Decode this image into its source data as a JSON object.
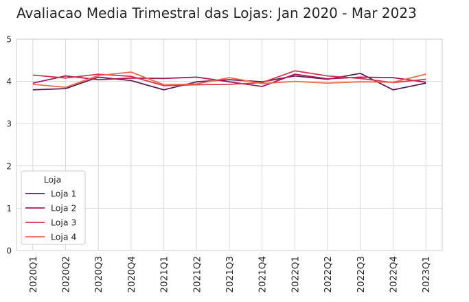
{
  "chart_data": {
    "type": "line",
    "title": "Avaliacao Media Trimestral das Lojas: Jan 2020 - Mar 2023",
    "xlabel": "",
    "ylabel": "",
    "ylim": [
      0,
      5
    ],
    "yticks": [
      "0",
      "1",
      "2",
      "3",
      "4",
      "5"
    ],
    "grid": true,
    "legend": {
      "title": "Loja",
      "placement": "lower-left"
    },
    "categories": [
      "2020Q1",
      "2020Q2",
      "2020Q3",
      "2020Q4",
      "2021Q1",
      "2021Q2",
      "2021Q3",
      "2021Q4",
      "2022Q1",
      "2022Q2",
      "2022Q3",
      "2022Q4",
      "2023Q1"
    ],
    "series": [
      {
        "name": "Loja 1",
        "color": "#5e1f53",
        "values": [
          3.8,
          3.83,
          4.1,
          4.02,
          3.8,
          3.99,
          4.04,
          3.99,
          4.13,
          4.05,
          4.19,
          3.8,
          3.96
        ]
      },
      {
        "name": "Loja 2",
        "color": "#a8185a",
        "values": [
          3.96,
          4.13,
          4.04,
          4.08,
          4.07,
          4.1,
          3.99,
          3.88,
          4.17,
          4.06,
          4.1,
          4.09,
          3.98
        ]
      },
      {
        "name": "Loja 3",
        "color": "#d9354a",
        "values": [
          4.15,
          4.08,
          4.17,
          4.12,
          3.9,
          3.92,
          3.93,
          3.97,
          4.25,
          4.13,
          4.07,
          3.97,
          4.05
        ]
      },
      {
        "name": "Loja 4",
        "color": "#ee6a4a",
        "values": [
          3.93,
          3.86,
          4.14,
          4.22,
          3.92,
          3.94,
          4.09,
          3.95,
          4.0,
          3.96,
          3.99,
          3.98,
          4.17
        ]
      }
    ]
  }
}
